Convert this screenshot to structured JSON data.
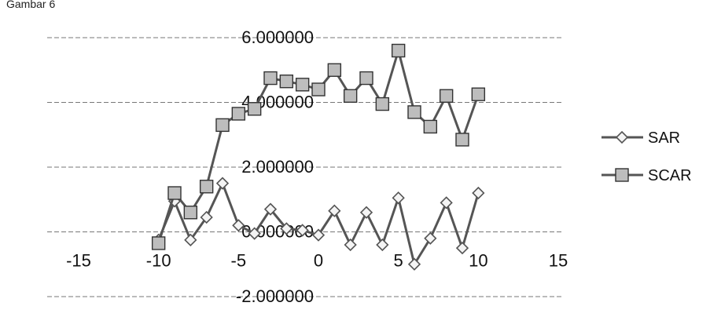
{
  "page_fragment": "Gambar 6",
  "chart_data": {
    "type": "line",
    "title": "",
    "xlabel": "",
    "ylabel": "",
    "xlim": [
      -15,
      15
    ],
    "ylim": [
      -2,
      6
    ],
    "x_ticks": [
      -15,
      -10,
      -5,
      0,
      5,
      10,
      15
    ],
    "x_tick_labels": [
      "-15",
      "-10",
      "-5",
      "0",
      "5",
      "10",
      "15"
    ],
    "y_ticks": [
      -2,
      0,
      2,
      4,
      6
    ],
    "y_tick_labels": [
      "-2.000000",
      "0.000000",
      "2.000000",
      "4.000000",
      "6.000000"
    ],
    "grid": true,
    "legend_position": "right",
    "x": [
      -10,
      -9,
      -8,
      -7,
      -6,
      -5,
      -4,
      -3,
      -2,
      -1,
      0,
      1,
      2,
      3,
      4,
      5,
      6,
      7,
      8,
      9,
      10
    ],
    "series": [
      {
        "name": "SAR",
        "marker": "diamond",
        "color": "#555555",
        "values": [
          -0.25,
          0.95,
          -0.25,
          0.45,
          1.5,
          0.2,
          -0.05,
          0.7,
          0.1,
          0.05,
          -0.1,
          0.65,
          -0.4,
          0.6,
          -0.4,
          1.05,
          -1.0,
          -0.2,
          0.9,
          -0.5,
          1.2
        ]
      },
      {
        "name": "SCAR",
        "marker": "square",
        "color": "#555555",
        "values": [
          -0.35,
          1.2,
          0.6,
          1.4,
          3.3,
          3.65,
          3.8,
          4.75,
          4.65,
          4.55,
          4.4,
          5.0,
          4.2,
          4.75,
          3.95,
          5.6,
          3.7,
          3.25,
          4.2,
          2.85,
          4.25
        ]
      }
    ]
  }
}
